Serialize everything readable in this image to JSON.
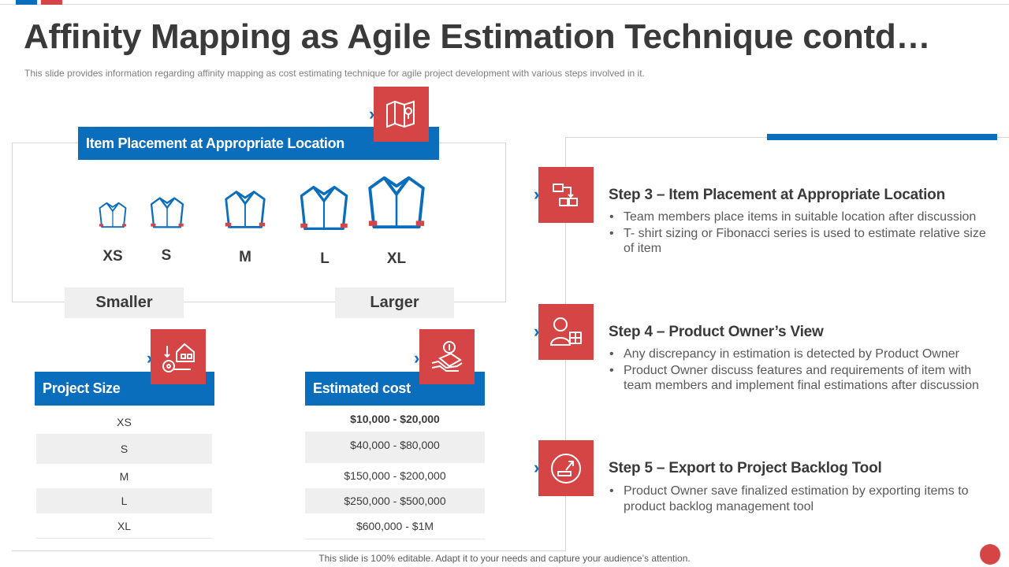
{
  "title": "Affinity Mapping as Agile Estimation Technique contd…",
  "subtitle": "This slide provides  information  regarding  affinity  mapping  as  cost estimating technique for agile  project development   with various   steps involved   in it.",
  "placement": {
    "header": "Item Placement at Appropriate Location",
    "sizes": [
      "XS",
      "S",
      "M",
      "L",
      "XL"
    ],
    "smaller_label": "Smaller",
    "larger_label": "Larger"
  },
  "table": {
    "size_header": "Project Size",
    "cost_header": "Estimated cost",
    "rows": [
      {
        "size": "XS",
        "cost": "$10,000 - $20,000"
      },
      {
        "size": "S",
        "cost": "$40,000 - $80,000"
      },
      {
        "size": "M",
        "cost": "$150,000 - $200,000"
      },
      {
        "size": "L",
        "cost": "$250,000 - $500,000"
      },
      {
        "size": "XL",
        "cost": "$600,000 - $1M"
      }
    ]
  },
  "steps": [
    {
      "title": "Step 3 – Item Placement at Appropriate Location",
      "icon": "flowchart-icon",
      "bullets": [
        "Team members place items in suitable location after discussion",
        "T- shirt sizing or Fibonacci series is used to estimate relative size of item"
      ]
    },
    {
      "title": "Step 4 – Product Owner’s View",
      "icon": "owner-icon",
      "bullets": [
        "Any discrepancy in estimation is detected by Product Owner",
        "Product Owner discuss features and requirements of item with team members and implement final estimations after discussion"
      ]
    },
    {
      "title": "Step 5 – Export to Project Backlog Tool",
      "icon": "export-icon",
      "bullets": [
        "Product Owner save finalized estimation by exporting items to product backlog management tool"
      ]
    }
  ],
  "footer": "This slide is 100% editable. Adapt it to your needs and capture your audience’s attention.",
  "colors": {
    "blue": "#0a6ebd",
    "red": "#d64545",
    "text": "#3a3a3a",
    "muted": "#7f7f7f",
    "shade": "#efefef"
  }
}
